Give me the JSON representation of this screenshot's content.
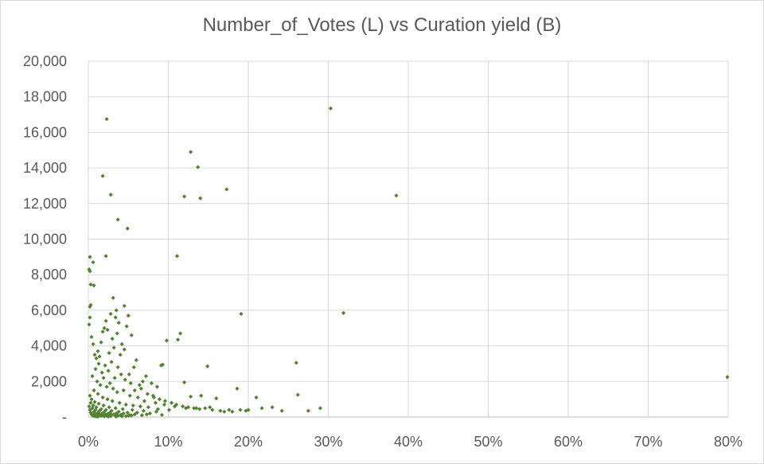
{
  "chart_data": {
    "type": "scatter",
    "title": "Number_of_Votes (L) vs Curation yield (B)",
    "xlabel": "",
    "ylabel": "",
    "xlim": [
      0,
      0.8
    ],
    "ylim": [
      0,
      20000
    ],
    "x_ticks": [
      0,
      0.1,
      0.2,
      0.3,
      0.4,
      0.5,
      0.6,
      0.7,
      0.8
    ],
    "x_tick_labels": [
      "0%",
      "10%",
      "20%",
      "30%",
      "40%",
      "50%",
      "60%",
      "70%",
      "80%"
    ],
    "y_ticks": [
      0,
      2000,
      4000,
      6000,
      8000,
      10000,
      12000,
      14000,
      16000,
      18000,
      20000
    ],
    "y_tick_labels": [
      "-",
      "2,000",
      "4,000",
      "6,000",
      "8,000",
      "10,000",
      "12,000",
      "14,000",
      "16,000",
      "18,000",
      "20,000"
    ],
    "grid": true,
    "legend": "none",
    "marker_color": "#548235",
    "marker": "diamond",
    "series": [
      {
        "x": [
          0.023,
          0.303,
          0.128,
          0.137,
          0.018,
          0.028,
          0.385,
          0.173,
          0.12,
          0.14,
          0.037,
          0.049,
          0.111,
          0.022,
          0.002,
          0.001,
          0.002,
          0.006,
          0.003,
          0.007,
          0.191,
          0.319,
          0.002,
          0.003,
          0.031,
          0.045,
          0.05,
          0.035,
          0.26,
          0.149,
          0.799,
          0.262,
          0.29,
          0.275,
          0.242,
          0.23,
          0.217,
          0.21,
          0.2,
          0.197,
          0.19,
          0.186,
          0.176,
          0.17,
          0.16,
          0.152,
          0.146,
          0.141,
          0.135,
          0.128,
          0.12,
          0.115,
          0.112,
          0.098,
          0.093,
          0.091,
          0.086,
          0.082,
          0.079,
          0.072,
          0.068,
          0.064,
          0.06,
          0.057,
          0.054,
          0.051,
          0.048,
          0.045,
          0.042,
          0.04,
          0.038,
          0.036,
          0.034,
          0.032,
          0.03,
          0.028,
          0.026,
          0.024,
          0.022,
          0.02,
          0.018,
          0.016,
          0.014,
          0.012,
          0.01,
          0.008,
          0.006,
          0.004,
          0.002,
          0.001,
          0.009,
          0.013,
          0.017,
          0.021,
          0.025,
          0.029,
          0.033,
          0.037,
          0.041,
          0.046,
          0.053,
          0.058,
          0.066,
          0.074,
          0.081,
          0.089,
          0.096,
          0.104,
          0.11,
          0.118,
          0.125,
          0.132,
          0.139,
          0.155,
          0.165,
          0.18,
          0.005,
          0.011,
          0.015,
          0.019,
          0.023,
          0.027,
          0.031,
          0.036,
          0.044,
          0.052,
          0.062,
          0.07,
          0.084,
          0.095,
          0.108,
          0.122,
          0.007,
          0.012,
          0.018,
          0.024,
          0.03,
          0.039,
          0.047,
          0.056,
          0.065,
          0.075,
          0.087,
          0.101,
          0.002,
          0.004,
          0.008,
          0.013,
          0.019,
          0.026,
          0.034,
          0.043,
          0.055,
          0.069,
          0.085,
          0.003,
          0.006,
          0.01,
          0.016,
          0.022,
          0.029,
          0.038,
          0.049,
          0.061,
          0.077,
          0.001,
          0.005,
          0.009,
          0.014,
          0.02,
          0.027,
          0.035,
          0.044,
          0.058,
          0.073,
          0.092,
          0.002,
          0.007,
          0.012,
          0.017,
          0.024,
          0.032,
          0.041,
          0.052,
          0.067,
          0.003,
          0.008,
          0.014,
          0.021,
          0.029,
          0.04,
          0.054,
          0.004,
          0.01,
          0.018,
          0.027,
          0.037,
          0.05,
          0.005,
          0.013,
          0.023,
          0.034,
          0.047,
          0.006,
          0.016,
          0.028,
          0.042,
          0.008,
          0.02,
          0.035,
          0.01,
          0.025,
          0.012
        ],
        "y": [
          16750,
          17350,
          14900,
          14050,
          13550,
          12500,
          12450,
          12800,
          12400,
          12300,
          11100,
          10600,
          9050,
          9050,
          9000,
          8300,
          8200,
          8700,
          7450,
          7400,
          5800,
          5850,
          6200,
          6300,
          6700,
          6250,
          5700,
          6000,
          3050,
          2850,
          2250,
          1250,
          500,
          350,
          350,
          550,
          500,
          1100,
          400,
          350,
          400,
          1600,
          400,
          300,
          1050,
          550,
          500,
          1200,
          500,
          1150,
          1950,
          4700,
          4350,
          4300,
          2950,
          2900,
          1700,
          1100,
          1900,
          2300,
          2000,
          1800,
          3200,
          2800,
          4600,
          2400,
          5100,
          3800,
          4100,
          3500,
          5300,
          4700,
          5600,
          3900,
          4400,
          5800,
          3600,
          4900,
          5400,
          5000,
          4800,
          4200,
          3400,
          3700,
          3300,
          3500,
          4100,
          4500,
          5600,
          5200,
          2700,
          3000,
          2500,
          2900,
          2600,
          3100,
          2200,
          2800,
          2400,
          2100,
          1900,
          1500,
          1600,
          1300,
          1200,
          1000,
          900,
          800,
          700,
          600,
          550,
          500,
          450,
          400,
          350,
          300,
          2300,
          2000,
          1800,
          2200,
          1700,
          1900,
          1600,
          1400,
          1500,
          1200,
          1100,
          900,
          800,
          700,
          600,
          500,
          1500,
          1300,
          1100,
          1000,
          900,
          800,
          700,
          650,
          600,
          550,
          450,
          400,
          1200,
          1000,
          850,
          750,
          650,
          550,
          500,
          450,
          400,
          350,
          300,
          800,
          650,
          550,
          450,
          400,
          350,
          300,
          250,
          250,
          200,
          600,
          500,
          400,
          350,
          300,
          250,
          200,
          200,
          150,
          150,
          120,
          400,
          300,
          250,
          200,
          180,
          150,
          130,
          110,
          100,
          250,
          200,
          160,
          140,
          120,
          100,
          90,
          150,
          120,
          100,
          90,
          80,
          70,
          100,
          80,
          70,
          60,
          50,
          70,
          60,
          50,
          40,
          50,
          40,
          30,
          30,
          25,
          20
        ]
      }
    ]
  }
}
